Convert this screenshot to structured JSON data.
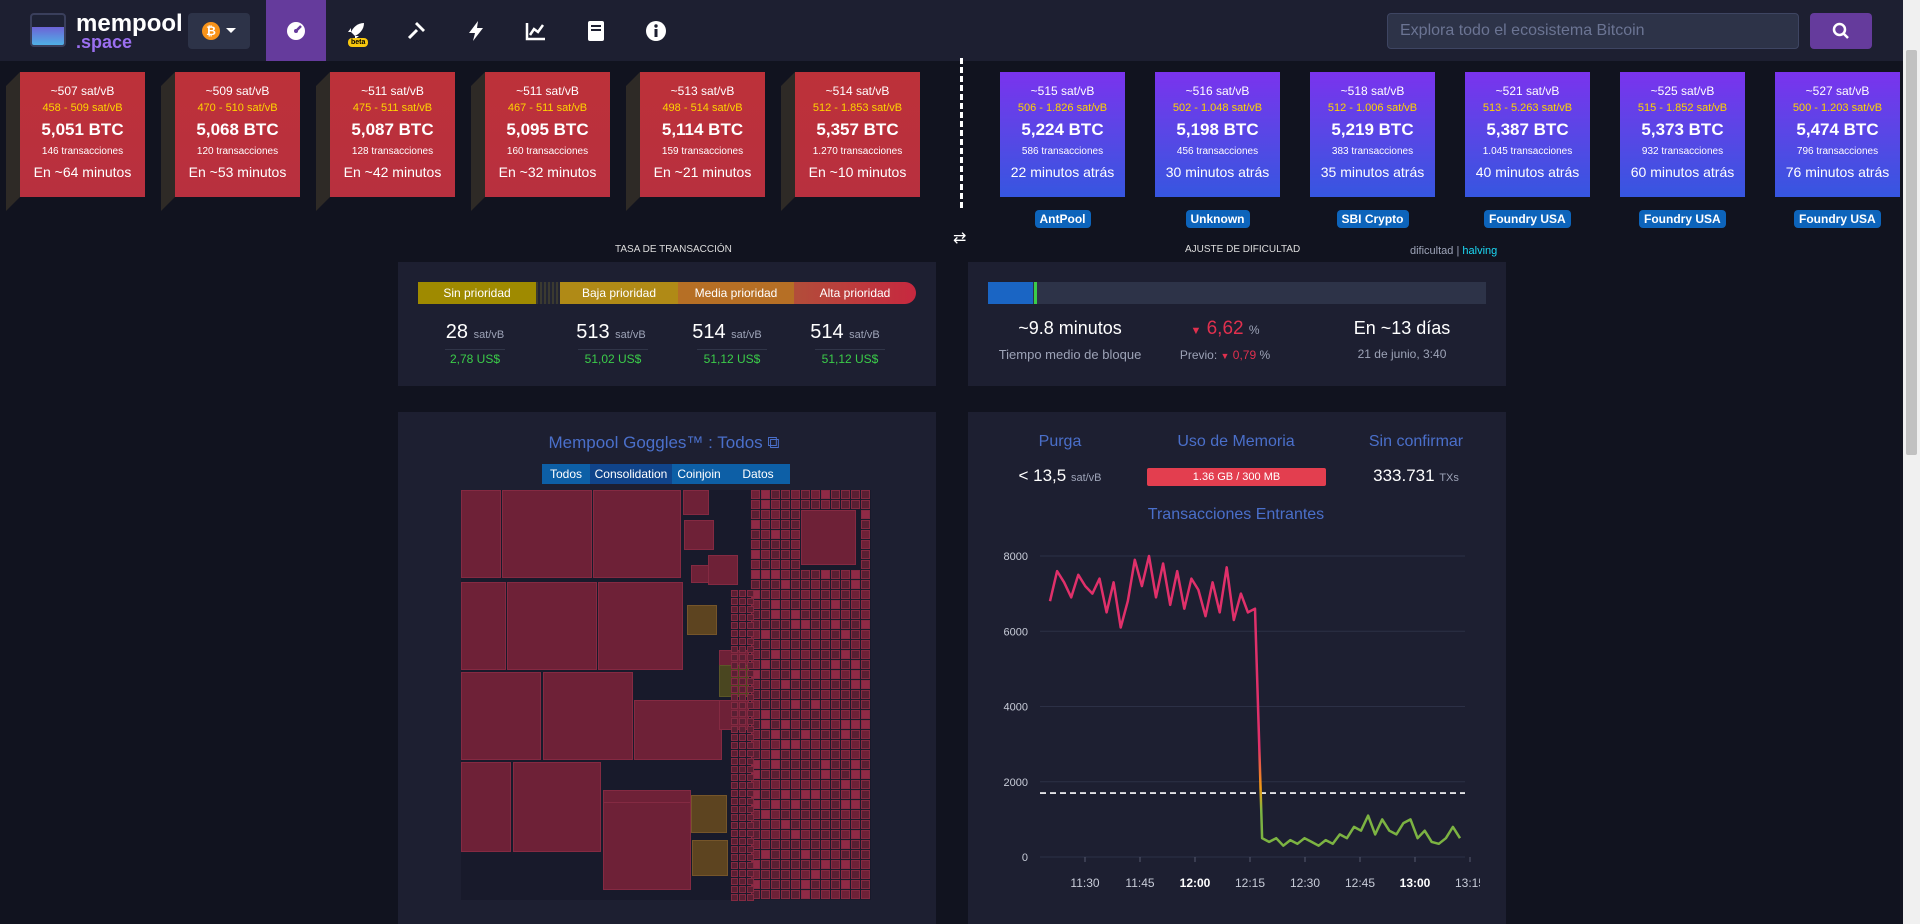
{
  "nav": {
    "logo_line1": "mempool",
    "logo_line2": ".space",
    "network_symbol": "₿",
    "beta_label": "beta",
    "icons": [
      "dashboard-icon",
      "rocket-icon",
      "hammer-icon",
      "lightning-icon",
      "chart-icon",
      "book-icon",
      "info-icon"
    ],
    "search_placeholder": "Explora todo el ecosistema Bitcoin"
  },
  "mempool_blocks": [
    {
      "fee": "~507 sat/vB",
      "range": "458 - 509 sat/vB",
      "size": "5,051 BTC",
      "txs": "146 transacciones",
      "time": "En ~64 minutos"
    },
    {
      "fee": "~509 sat/vB",
      "range": "470 - 510 sat/vB",
      "size": "5,068 BTC",
      "txs": "120 transacciones",
      "time": "En ~53 minutos"
    },
    {
      "fee": "~511 sat/vB",
      "range": "475 - 511 sat/vB",
      "size": "5,087 BTC",
      "txs": "128 transacciones",
      "time": "En ~42 minutos"
    },
    {
      "fee": "~511 sat/vB",
      "range": "467 - 511 sat/vB",
      "size": "5,095 BTC",
      "txs": "160 transacciones",
      "time": "En ~32 minutos"
    },
    {
      "fee": "~513 sat/vB",
      "range": "498 - 514 sat/vB",
      "size": "5,114 BTC",
      "txs": "159 transacciones",
      "time": "En ~21 minutos"
    },
    {
      "fee": "~514 sat/vB",
      "range": "512 - 1.853 sat/vB",
      "size": "5,357 BTC",
      "txs": "1.270 transacciones",
      "time": "En ~10 minutos"
    }
  ],
  "mined_blocks": [
    {
      "fee": "~515 sat/vB",
      "range": "506 - 1.826 sat/vB",
      "size": "5,224 BTC",
      "txs": "586 transacciones",
      "time": "22 minutos atrás",
      "pool": "AntPool"
    },
    {
      "fee": "~516 sat/vB",
      "range": "502 - 1.048 sat/vB",
      "size": "5,198 BTC",
      "txs": "456 transacciones",
      "time": "30 minutos atrás",
      "pool": "Unknown"
    },
    {
      "fee": "~518 sat/vB",
      "range": "512 - 1.006 sat/vB",
      "size": "5,219 BTC",
      "txs": "383 transacciones",
      "time": "35 minutos atrás",
      "pool": "SBI Crypto"
    },
    {
      "fee": "~521 sat/vB",
      "range": "513 - 5.263 sat/vB",
      "size": "5,387 BTC",
      "txs": "1.045 transacciones",
      "time": "40 minutos atrás",
      "pool": "Foundry USA"
    },
    {
      "fee": "~525 sat/vB",
      "range": "515 - 1.852 sat/vB",
      "size": "5,373 BTC",
      "txs": "932 transacciones",
      "time": "60 minutos atrás",
      "pool": "Foundry USA"
    },
    {
      "fee": "~527 sat/vB",
      "range": "500 - 1.203 sat/vB",
      "size": "5,474 BTC",
      "txs": "796 transacciones",
      "time": "76 minutos atrás",
      "pool": "Foundry USA"
    }
  ],
  "fees": {
    "title": "TASA DE TRANSACCIÓN",
    "labels": [
      "Sin prioridad",
      "Baja prioridad",
      "Media prioridad",
      "Alta prioridad"
    ],
    "values": [
      "28",
      "513",
      "514",
      "514"
    ],
    "unit": "sat/vB",
    "usd": [
      "2,78 US$",
      "51,02 US$",
      "51,12 US$",
      "51,12 US$"
    ]
  },
  "difficulty": {
    "title": "AJUSTE DE DIFICULTAD",
    "toggle_a": "dificultad",
    "toggle_sep": "|",
    "toggle_b": "halving",
    "progress": 0.09,
    "block_time": "~9.8 minutos",
    "block_time_label": "Tiempo medio de bloque",
    "change": "6,62",
    "change_unit": "%",
    "prev_label": "Previo:",
    "prev_value": "0,79",
    "prev_unit": "%",
    "eta": "En ~13 días",
    "eta_date": "21 de junio, 3:40"
  },
  "goggles": {
    "title": "Mempool Goggles™ : Todos",
    "tabs": [
      "Todos",
      "Consolidation",
      "Coinjoin",
      "Datos"
    ]
  },
  "mempool_stats": {
    "purge_label": "Purga",
    "purge_value": "< 13,5",
    "purge_unit": "sat/vB",
    "memory_label": "Uso de Memoria",
    "memory_value": "1.36 GB / 300 MB",
    "unconfirmed_label": "Sin confirmar",
    "unconfirmed_value": "333.731",
    "unconfirmed_unit": "TXs"
  },
  "chart_data": {
    "type": "line",
    "title": "Transacciones Entrantes",
    "x_ticks": [
      "11:30",
      "11:45",
      "12:00",
      "12:15",
      "12:30",
      "12:45",
      "13:00",
      "13:15"
    ],
    "bold_ticks": [
      "12:00",
      "13:00"
    ],
    "y_ticks": [
      0,
      2000,
      4000,
      6000,
      8000
    ],
    "ylim": [
      0,
      8000
    ],
    "threshold": 1700,
    "values": [
      6800,
      7600,
      7300,
      6900,
      7500,
      7200,
      7000,
      7400,
      6500,
      7300,
      6100,
      6800,
      7900,
      7200,
      8000,
      6900,
      7800,
      6700,
      7600,
      6600,
      7400,
      7100,
      6400,
      7300,
      6500,
      7700,
      6300,
      7000,
      6500,
      6600,
      500,
      400,
      500,
      300,
      450,
      350,
      500,
      400,
      300,
      450,
      350,
      600,
      500,
      800,
      700,
      1100,
      600,
      1000,
      700,
      600,
      900,
      1000,
      500,
      700,
      400,
      350,
      500,
      800,
      500
    ],
    "colors": [
      "#e0306a",
      "#f39c12",
      "#7cb342"
    ]
  }
}
